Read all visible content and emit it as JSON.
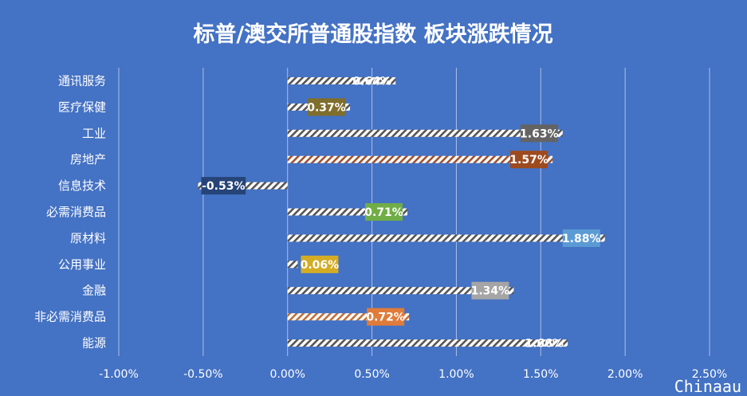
{
  "chart_data": {
    "type": "bar",
    "orientation": "horizontal",
    "title": "标普/澳交所普通股指数 板块涨跌情况",
    "categories": [
      "通讯服务",
      "医疗保健",
      "工业",
      "房地产",
      "信息技术",
      "必需消费品",
      "原材料",
      "公用事业",
      "金融",
      "非必需消费品",
      "能源"
    ],
    "values": [
      0.64,
      0.37,
      1.63,
      1.57,
      -0.53,
      0.71,
      1.88,
      0.06,
      1.34,
      0.72,
      1.66
    ],
    "value_labels": [
      "0.64%",
      "0.37%",
      "1.63%",
      "1.57%",
      "-0.53%",
      "0.71%",
      "1.88%",
      "0.06%",
      "1.34%",
      "0.72%",
      "1.66%"
    ],
    "label_colors": [
      "",
      "#7F6E2C",
      "#636363",
      "#9E4A1F",
      "#264478",
      "#70AD47",
      "#5B9BD5",
      "#D4AC24",
      "#A5A5A5",
      "#E07B39",
      ""
    ],
    "bar_stripe_colors": [
      "#555555",
      "#555555",
      "#555555",
      "#A0522D",
      "#555555",
      "#555555",
      "#555555",
      "#555555",
      "#555555",
      "#C0703A",
      "#555555"
    ],
    "xlim": [
      -1.0,
      2.5
    ],
    "xticks": [
      -1.0,
      -0.5,
      0.0,
      0.5,
      1.0,
      1.5,
      2.0,
      2.5
    ],
    "xtick_labels": [
      "-1.00%",
      "-0.50%",
      "0.00%",
      "0.50%",
      "1.00%",
      "1.50%",
      "2.00%",
      "2.50%"
    ],
    "grid": true,
    "xlabel": "",
    "ylabel": "",
    "background": "#4472C4"
  },
  "watermark": "Chinaau"
}
